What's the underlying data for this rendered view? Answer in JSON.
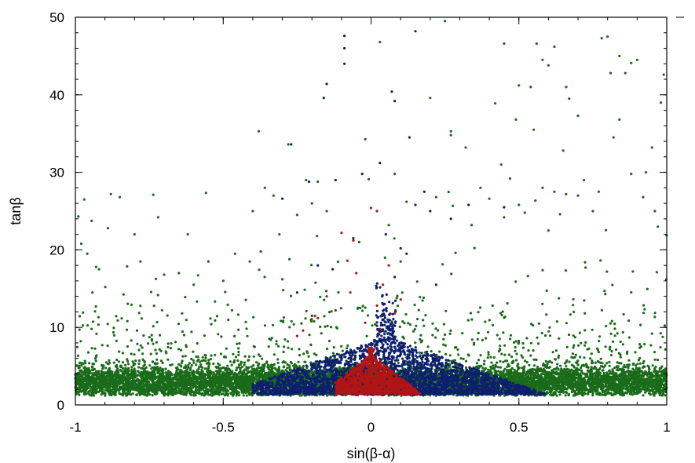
{
  "chart_data": {
    "type": "scatter",
    "xlabel": "sin(β-α)",
    "ylabel": "tanβ",
    "xlim": [
      -1,
      1
    ],
    "ylim": [
      0,
      50
    ],
    "x_ticks": [
      -1,
      -0.5,
      0,
      0.5,
      1
    ],
    "x_tick_labels": [
      "-1",
      "-0.5",
      "0",
      "0.5",
      "1"
    ],
    "y_ticks": [
      0,
      10,
      20,
      30,
      40,
      50
    ],
    "y_tick_labels": [
      "0",
      "10",
      "20",
      "30",
      "40",
      "50"
    ],
    "grid": false,
    "legend": "none",
    "series": [
      {
        "color": "#1a6b1a",
        "points": [
          [
            -0.99,
            24.3
          ],
          [
            -0.98,
            20.8
          ],
          [
            -0.97,
            26.5
          ],
          [
            -0.96,
            19.5
          ],
          [
            -0.93,
            17.8
          ],
          [
            -0.92,
            17.5
          ],
          [
            -0.89,
            22.8
          ],
          [
            -0.88,
            27.2
          ],
          [
            -0.85,
            26.8
          ],
          [
            -0.8,
            22.0
          ],
          [
            -0.78,
            18.5
          ],
          [
            -0.72,
            24.2
          ],
          [
            -0.7,
            16.8
          ],
          [
            -0.65,
            17.0
          ],
          [
            -0.62,
            22.0
          ],
          [
            -0.6,
            15.5
          ],
          [
            -0.55,
            18.5
          ],
          [
            -0.5,
            16.0
          ],
          [
            -0.46,
            19.5
          ],
          [
            -0.4,
            25.0
          ],
          [
            -0.41,
            18.5
          ],
          [
            -0.36,
            16.5
          ],
          [
            -0.33,
            27.0
          ],
          [
            -0.3,
            16.2
          ],
          [
            -0.28,
            33.6
          ],
          [
            -0.25,
            24.5
          ],
          [
            -0.22,
            29.0
          ],
          [
            -0.2,
            26.0
          ],
          [
            -0.38,
            35.3
          ],
          [
            -0.31,
            22.0
          ],
          [
            -0.18,
            28.8
          ],
          [
            -0.15,
            25.0
          ],
          [
            0.03,
            46.8
          ],
          [
            0.06,
            23.2
          ],
          [
            0.08,
            29.8
          ],
          [
            0.12,
            26.2
          ],
          [
            0.2,
            39.6
          ],
          [
            0.22,
            26.8
          ],
          [
            0.25,
            49.5
          ],
          [
            0.27,
            34.8
          ],
          [
            0.27,
            35.3
          ],
          [
            0.32,
            33.2
          ],
          [
            0.34,
            23.2
          ],
          [
            0.37,
            28.0
          ],
          [
            0.4,
            26.6
          ],
          [
            0.42,
            38.9
          ],
          [
            0.44,
            31.0
          ],
          [
            0.45,
            24.2
          ],
          [
            0.47,
            29.2
          ],
          [
            0.49,
            36.8
          ],
          [
            0.5,
            25.8
          ],
          [
            0.52,
            24.8
          ],
          [
            0.55,
            35.5
          ],
          [
            0.58,
            28.0
          ],
          [
            0.6,
            22.5
          ],
          [
            0.62,
            27.5
          ],
          [
            0.65,
            32.8
          ],
          [
            0.67,
            39.5
          ],
          [
            0.7,
            37.3
          ],
          [
            0.72,
            29.0
          ],
          [
            0.75,
            25.0
          ],
          [
            0.77,
            27.5
          ],
          [
            0.8,
            47.5
          ],
          [
            0.81,
            42.8
          ],
          [
            0.84,
            45.0
          ],
          [
            0.86,
            42.8
          ],
          [
            0.88,
            44.1
          ],
          [
            0.9,
            44.5
          ],
          [
            0.92,
            26.8
          ],
          [
            0.93,
            30.0
          ],
          [
            0.95,
            33.2
          ],
          [
            0.96,
            25.0
          ],
          [
            0.97,
            23.0
          ],
          [
            0.98,
            39.0
          ],
          [
            0.99,
            42.6
          ],
          [
            0.62,
            46.2
          ],
          [
            0.56,
            46.6
          ],
          [
            0.45,
            46.6
          ],
          [
            0.78,
            47.3
          ],
          [
            0.7,
            27.0
          ],
          [
            0.82,
            34.5
          ],
          [
            0.84,
            36.8
          ],
          [
            0.88,
            29.8
          ],
          [
            0.66,
            41.0
          ],
          [
            0.54,
            41.0
          ],
          [
            0.5,
            41.2
          ],
          [
            0.58,
            44.5
          ],
          [
            0.6,
            43.8
          ],
          [
            -0.04,
            21.0
          ],
          [
            0.1,
            18.5
          ]
        ]
      },
      {
        "color": "#0e1f6e",
        "points": [
          [
            -0.09,
            47.6
          ],
          [
            -0.09,
            46.0
          ],
          [
            -0.09,
            44.0
          ],
          [
            -0.15,
            41.4
          ],
          [
            -0.16,
            39.6
          ],
          [
            0.07,
            40.4
          ],
          [
            0.08,
            39.2
          ],
          [
            0.15,
            48.2
          ],
          [
            0.13,
            34.5
          ],
          [
            0.03,
            31.2
          ],
          [
            -0.03,
            29.8
          ],
          [
            -0.3,
            26.6
          ],
          [
            -0.27,
            33.6
          ],
          [
            -0.12,
            29.0
          ],
          [
            0.15,
            25.8
          ],
          [
            0.18,
            27.5
          ],
          [
            0.2,
            25.0
          ],
          [
            0.33,
            25.8
          ],
          [
            0.27,
            24.0
          ],
          [
            -0.21,
            28.8
          ],
          [
            0.45,
            25.5
          ],
          [
            0.1,
            20.2
          ],
          [
            0.05,
            22.0
          ],
          [
            -0.06,
            21.5
          ],
          [
            -0.18,
            18.0
          ],
          [
            0.12,
            19.5
          ],
          [
            -0.13,
            17.5
          ],
          [
            0.22,
            15.5
          ],
          [
            -0.25,
            14.5
          ],
          [
            0.08,
            16.5
          ]
        ]
      },
      {
        "color": "#b01515",
        "points": [
          [
            0.0,
            25.4
          ],
          [
            0.02,
            25.0
          ],
          [
            -0.1,
            22.2
          ],
          [
            -0.06,
            21.2
          ],
          [
            -0.08,
            18.6
          ],
          [
            0.06,
            18.0
          ],
          [
            -0.05,
            17.0
          ],
          [
            0.04,
            15.5
          ],
          [
            -0.15,
            14.0
          ],
          [
            -0.12,
            12.2
          ],
          [
            -0.2,
            11.5
          ],
          [
            -0.18,
            11.2
          ],
          [
            -0.25,
            8.9
          ],
          [
            -0.23,
            9.6
          ],
          [
            0.1,
            13.6
          ],
          [
            0.08,
            11.8
          ],
          [
            -0.07,
            14.5
          ],
          [
            0.02,
            12.8
          ],
          [
            -0.02,
            10.6
          ],
          [
            0.03,
            9.8
          ]
        ]
      }
    ],
    "density_clusters": [
      {
        "color": "#1a6b1a",
        "count": 9500,
        "x_range": [
          -1,
          1
        ],
        "y_mode": 3.0,
        "y_spread": 1.3,
        "y_tail": 7.0,
        "y_max": 15
      },
      {
        "color": "#0e1f6e",
        "count": 3200,
        "x_center": 0.05,
        "x_halfwidth": 0.55,
        "x_range": [
          -0.4,
          0.65
        ],
        "y_min": 1.3,
        "y_max": 10,
        "y_tail": 2.2
      },
      {
        "color": "#b01515",
        "count": 1400,
        "x_center": 0.0,
        "x_halfwidth": 0.2,
        "x_range": [
          -0.12,
          0.2
        ],
        "y_min": 1.4,
        "y_max": 7.5,
        "y_tail": 1.6
      }
    ]
  }
}
